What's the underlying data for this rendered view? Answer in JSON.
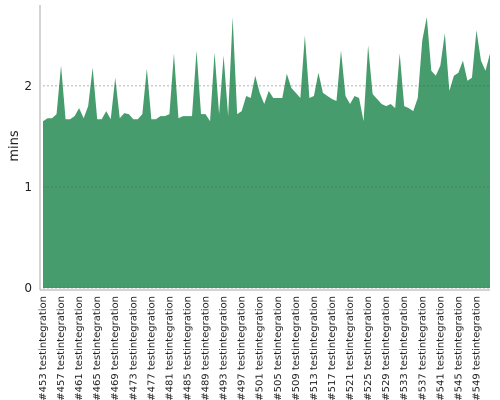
{
  "chart_data": {
    "type": "area",
    "ylabel": "mins",
    "color": "#469c6c",
    "categories": [
      "#453 testintegration",
      null,
      null,
      null,
      "#457 testintegration",
      null,
      null,
      null,
      "#461 testintegration",
      null,
      null,
      null,
      "#465 testintegration",
      null,
      null,
      null,
      "#469 testintegration",
      null,
      null,
      null,
      "#473 testintegration",
      null,
      null,
      null,
      "#477 testintegration",
      null,
      null,
      null,
      "#481 testintegration",
      null,
      null,
      null,
      "#485 testintegration",
      null,
      null,
      null,
      "#489 testintegration",
      null,
      null,
      null,
      "#493 testintegration",
      null,
      null,
      null,
      "#497 testintegration",
      null,
      null,
      null,
      "#501 testintegration",
      null,
      null,
      null,
      "#505 testintegration",
      null,
      null,
      null,
      "#509 testintegration",
      null,
      null,
      null,
      "#513 testintegration",
      null,
      null,
      null,
      "#517 testintegration",
      null,
      null,
      null,
      "#521 testintegration",
      null,
      null,
      null,
      "#525 testintegration",
      null,
      null,
      null,
      "#529 testintegration",
      null,
      null,
      null,
      "#533 testintegration",
      null,
      null,
      null,
      "#537 testintegration",
      null,
      null,
      null,
      "#541 testintegration",
      null,
      null,
      null,
      "#545 testintegration",
      null,
      null,
      null,
      "#549 testintegration",
      null,
      null,
      null
    ],
    "values": [
      1.65,
      1.68,
      1.68,
      1.72,
      2.2,
      1.67,
      1.67,
      1.7,
      1.78,
      1.68,
      1.8,
      2.18,
      1.67,
      1.67,
      1.75,
      1.67,
      2.08,
      1.68,
      1.73,
      1.72,
      1.67,
      1.67,
      1.72,
      2.17,
      1.67,
      1.67,
      1.7,
      1.7,
      1.72,
      2.32,
      1.68,
      1.7,
      1.7,
      1.7,
      2.35,
      1.72,
      1.72,
      1.65,
      2.33,
      1.72,
      2.3,
      1.7,
      2.68,
      1.72,
      1.75,
      1.9,
      1.88,
      2.1,
      1.93,
      1.82,
      1.95,
      1.88,
      1.88,
      1.88,
      2.12,
      1.98,
      1.93,
      1.88,
      2.5,
      1.88,
      1.9,
      2.13,
      1.93,
      1.9,
      1.87,
      1.85,
      2.35,
      1.9,
      1.82,
      1.9,
      1.88,
      1.65,
      2.4,
      1.92,
      1.87,
      1.82,
      1.8,
      1.82,
      1.78,
      2.32,
      1.8,
      1.78,
      1.75,
      1.88,
      2.45,
      2.68,
      2.15,
      2.1,
      2.2,
      2.52,
      1.95,
      2.1,
      2.13,
      2.25,
      2.05,
      2.08,
      2.55,
      2.25,
      2.15,
      2.32
    ],
    "ylim": [
      0,
      2.8
    ],
    "yticks": [
      0,
      1,
      2
    ],
    "grid": true
  }
}
